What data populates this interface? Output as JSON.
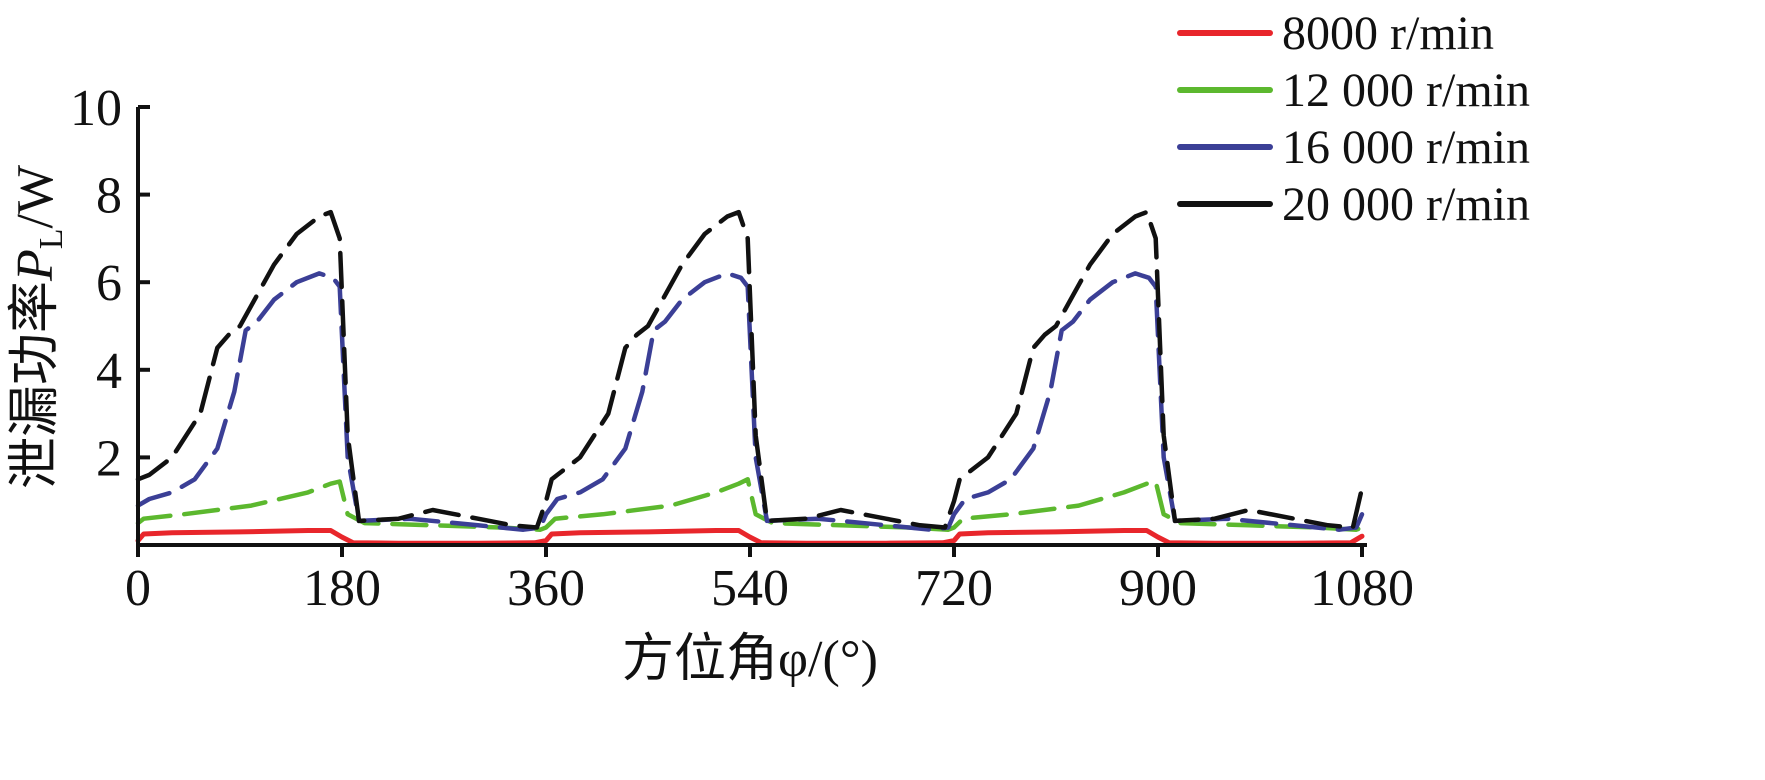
{
  "chart_data": {
    "type": "line",
    "xlabel": "方位角φ/(°)",
    "ylabel_prefix": "泄漏功率",
    "ylabel_symbol": "P",
    "ylabel_subscript": "L",
    "ylabel_unit": "/W",
    "xlim": [
      0,
      1080
    ],
    "ylim": [
      0,
      10
    ],
    "x_ticks": [
      0,
      180,
      360,
      540,
      720,
      900,
      1080
    ],
    "x_tick_labels": [
      "0",
      "180",
      "360",
      "540",
      "720",
      "900",
      "1080"
    ],
    "y_ticks": [
      2,
      4,
      6,
      8,
      10
    ],
    "y_tick_labels": [
      "2",
      "4",
      "6",
      "8",
      "10"
    ],
    "legend_position": "top-right",
    "series": [
      {
        "name": "8000 r/min",
        "color": "#e8262b",
        "dash": "solid",
        "x": [
          0,
          5,
          30,
          90,
          150,
          170,
          180,
          190,
          230,
          300,
          350,
          360,
          365,
          390,
          450,
          510,
          530,
          540,
          550,
          590,
          660,
          710,
          720,
          725,
          750,
          810,
          870,
          890,
          900,
          910,
          950,
          1020,
          1070,
          1080
        ],
        "y": [
          0.1,
          0.25,
          0.28,
          0.3,
          0.33,
          0.33,
          0.18,
          0.05,
          0.04,
          0.04,
          0.05,
          0.1,
          0.25,
          0.28,
          0.3,
          0.33,
          0.33,
          0.18,
          0.05,
          0.04,
          0.04,
          0.05,
          0.1,
          0.25,
          0.28,
          0.3,
          0.33,
          0.33,
          0.18,
          0.05,
          0.04,
          0.04,
          0.05,
          0.2
        ]
      },
      {
        "name": "12 000 r/min",
        "color": "#5cb82e",
        "dash": "dashed",
        "x": [
          0,
          5,
          40,
          100,
          150,
          170,
          178,
          185,
          200,
          260,
          320,
          355,
          360,
          368,
          410,
          470,
          510,
          530,
          538,
          545,
          560,
          620,
          680,
          715,
          720,
          728,
          770,
          830,
          870,
          890,
          898,
          905,
          920,
          980,
          1040,
          1075,
          1080
        ],
        "y": [
          0.5,
          0.6,
          0.7,
          0.9,
          1.2,
          1.4,
          1.45,
          0.7,
          0.5,
          0.45,
          0.4,
          0.35,
          0.4,
          0.6,
          0.7,
          0.9,
          1.2,
          1.4,
          1.5,
          0.7,
          0.5,
          0.45,
          0.4,
          0.35,
          0.4,
          0.6,
          0.7,
          0.9,
          1.2,
          1.4,
          1.45,
          0.7,
          0.5,
          0.45,
          0.4,
          0.35,
          0.4
        ]
      },
      {
        "name": "16 000 r/min",
        "color": "#3b3f96",
        "dash": "dashed",
        "x": [
          0,
          10,
          30,
          50,
          70,
          85,
          95,
          105,
          120,
          140,
          160,
          172,
          178,
          185,
          195,
          240,
          300,
          340,
          355,
          360,
          370,
          390,
          410,
          430,
          445,
          455,
          465,
          480,
          500,
          520,
          532,
          538,
          545,
          555,
          600,
          660,
          700,
          715,
          720,
          730,
          750,
          770,
          790,
          805,
          815,
          825,
          840,
          860,
          880,
          892,
          898,
          905,
          915,
          960,
          1020,
          1060,
          1075,
          1080
        ],
        "y": [
          0.9,
          1.05,
          1.2,
          1.5,
          2.2,
          3.5,
          4.9,
          5.1,
          5.6,
          6.0,
          6.2,
          6.1,
          5.9,
          2.0,
          0.55,
          0.6,
          0.45,
          0.35,
          0.4,
          0.7,
          1.05,
          1.2,
          1.5,
          2.2,
          3.5,
          4.9,
          5.1,
          5.6,
          6.0,
          6.2,
          6.1,
          5.9,
          2.0,
          0.55,
          0.6,
          0.45,
          0.35,
          0.4,
          0.7,
          1.05,
          1.2,
          1.5,
          2.2,
          3.5,
          4.9,
          5.1,
          5.6,
          6.0,
          6.2,
          6.1,
          5.9,
          2.0,
          0.55,
          0.6,
          0.45,
          0.35,
          0.4,
          0.7
        ]
      },
      {
        "name": "20 000 r/min",
        "color": "#111111",
        "dash": "dashed",
        "x": [
          0,
          10,
          30,
          55,
          70,
          80,
          90,
          105,
          120,
          140,
          160,
          170,
          178,
          185,
          195,
          230,
          260,
          300,
          330,
          352,
          360,
          365,
          370,
          390,
          415,
          430,
          440,
          450,
          465,
          480,
          500,
          520,
          530,
          538,
          545,
          555,
          590,
          620,
          660,
          690,
          712,
          720,
          725,
          730,
          750,
          775,
          790,
          800,
          810,
          825,
          840,
          860,
          880,
          890,
          898,
          905,
          915,
          950,
          980,
          1020,
          1050,
          1072,
          1080
        ],
        "y": [
          1.5,
          1.6,
          2.0,
          3.0,
          4.5,
          4.8,
          5.0,
          5.7,
          6.4,
          7.1,
          7.5,
          7.6,
          7.0,
          2.5,
          0.55,
          0.6,
          0.8,
          0.6,
          0.45,
          0.4,
          1.0,
          1.5,
          1.6,
          2.0,
          3.0,
          4.5,
          4.8,
          5.0,
          5.7,
          6.4,
          7.1,
          7.5,
          7.6,
          7.0,
          2.5,
          0.55,
          0.6,
          0.8,
          0.6,
          0.45,
          0.4,
          1.0,
          1.5,
          1.6,
          2.0,
          3.0,
          4.5,
          4.8,
          5.0,
          5.7,
          6.4,
          7.1,
          7.5,
          7.6,
          7.0,
          2.5,
          0.55,
          0.6,
          0.8,
          0.6,
          0.45,
          0.4,
          1.3
        ]
      }
    ]
  }
}
